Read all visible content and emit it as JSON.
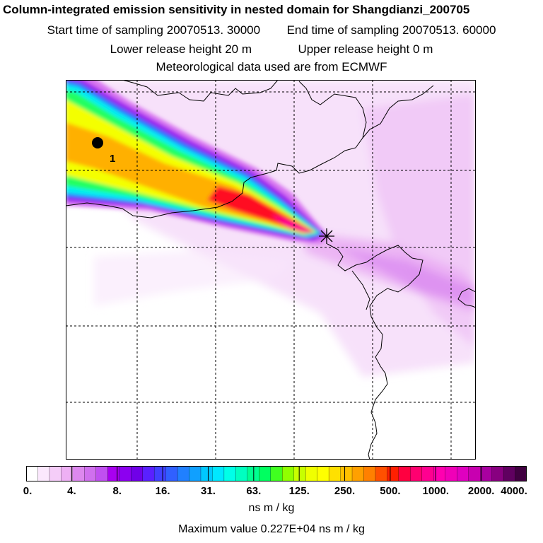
{
  "header": {
    "title": "Column-integrated emission sensitivity in nested domain for Shangdianzi_200705",
    "start_label": "Start time of sampling",
    "start_value": "20070513. 30000",
    "end_label": "End time of sampling",
    "end_value": "20070513. 60000",
    "lower_label": "Lower release height",
    "lower_value": "20 m",
    "upper_label": "Upper release height",
    "upper_value": "0 m",
    "met_line": "Meteorological data used are from ECMWF"
  },
  "map": {
    "cluster_label": "1",
    "source_marker": "asterisk-receptor",
    "plume_colors": [
      "#f4d0f8",
      "#ec9bf4",
      "#c000e0",
      "#00ffff",
      "#00ff80",
      "#ffff00",
      "#ffa000",
      "#ff0000",
      "#ff0090"
    ]
  },
  "colorbar": {
    "ticks": [
      "0.",
      "4.",
      "8.",
      "16.",
      "31.",
      "63.",
      "125.",
      "250.",
      "500.",
      "1000.",
      "2000.",
      "4000."
    ],
    "colors": [
      "#ffffff",
      "#fbe8fd",
      "#f5cdf8",
      "#eeb0f4",
      "#dd88ee",
      "#d070ee",
      "#c050f0",
      "#a800f0",
      "#8c00f0",
      "#7000e8",
      "#5a20ff",
      "#4040ff",
      "#3060ff",
      "#2080ff",
      "#10a0ff",
      "#00c8ff",
      "#00e8ff",
      "#00ffe8",
      "#00ffc0",
      "#00ff90",
      "#00ff60",
      "#40ff20",
      "#90ff00",
      "#c8ff00",
      "#f0ff00",
      "#ffff00",
      "#ffe000",
      "#ffc000",
      "#ffa000",
      "#ff8000",
      "#ff5000",
      "#ff2000",
      "#ff0040",
      "#ff0070",
      "#ff0090",
      "#ff00b0",
      "#f000b8",
      "#e000c0",
      "#c800b0",
      "#a800a0",
      "#880080",
      "#600060",
      "#400040"
    ],
    "units": "ns m / kg",
    "max_label": "Maximum value",
    "max_value": "0.227E+04 ns m / kg"
  }
}
